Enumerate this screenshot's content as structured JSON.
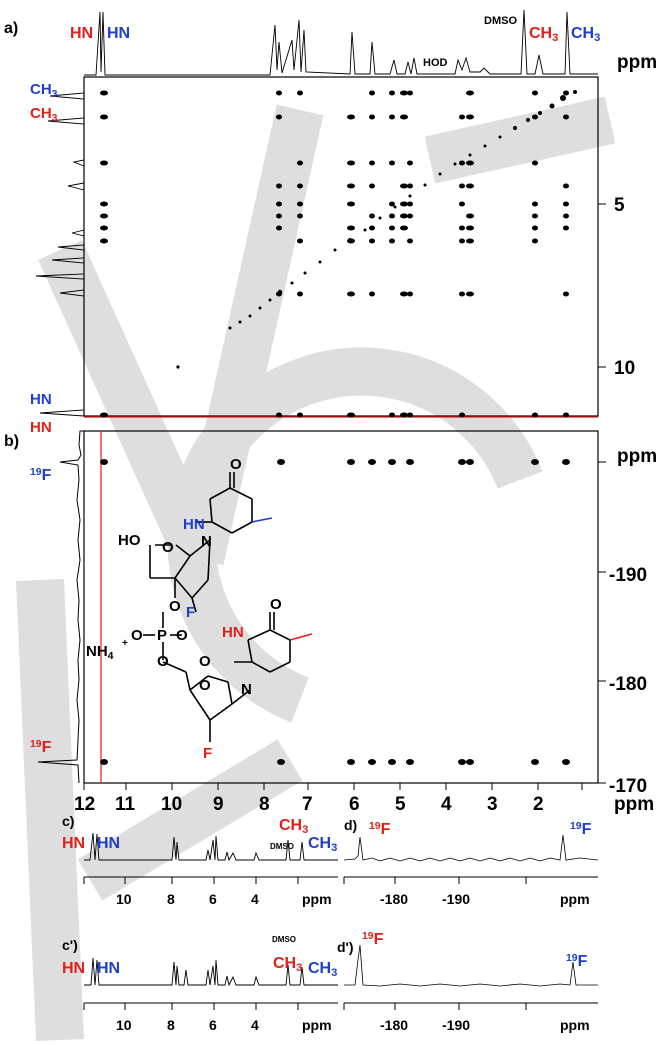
{
  "panels": {
    "a": {
      "label": "a)",
      "top_labels": {
        "hn_red": "HN",
        "hn_blue": "HN",
        "dmso": "DMSO",
        "ch3_red": "CH3",
        "ch3_blue": "CH3",
        "hod": "HOD"
      },
      "left_labels": {
        "ch3_blue": "CH3",
        "ch3_red": "CH3",
        "hn_blue": "HN",
        "hn_red": "HN"
      },
      "axis_unit": "ppm",
      "right_ticks": [
        "5",
        "10"
      ]
    },
    "b": {
      "label": "b)",
      "f19_blue": "19F",
      "f19_red": "19F",
      "axis_unit": "ppm",
      "right_ticks": [
        "-170",
        "-180",
        "-190"
      ]
    },
    "x_axis": {
      "ticks": [
        "12",
        "11",
        "10",
        "9",
        "8",
        "7",
        "6",
        "5",
        "4",
        "3",
        "2"
      ],
      "unit": "ppm"
    },
    "c": {
      "label": "c)",
      "labels": {
        "hn_red": "HN",
        "hn_blue": "HN",
        "ch3_red": "CH3",
        "dmso": "DMSO",
        "ch3_blue": "CH3"
      },
      "ticks": [
        "10",
        "8",
        "6",
        "4"
      ],
      "unit": "ppm"
    },
    "d": {
      "label": "d)",
      "f19_red": "19F",
      "f19_blue": "19F",
      "ticks": [
        "-180",
        "-190"
      ],
      "unit": "ppm"
    },
    "c_prime": {
      "label": "c')",
      "labels": {
        "hn_red": "HN",
        "hn_blue": "HN",
        "dmso": "DMSO",
        "ch3_red": "CH3",
        "ch3_blue": "CH3"
      },
      "ticks": [
        "10",
        "8",
        "6",
        "4"
      ],
      "unit": "ppm"
    },
    "d_prime": {
      "label": "d')",
      "f19_red": "19F",
      "f19_blue": "19F",
      "ticks": [
        "-180",
        "-190"
      ],
      "unit": "ppm"
    }
  },
  "structure": {
    "ho": "HO",
    "o": "O",
    "hn_blue": "HN",
    "n": "N",
    "f_blue": "F",
    "p": "P",
    "nh4": "NH4",
    "plus": "+",
    "hn_red": "HN",
    "f_red": "F"
  },
  "colors": {
    "red": "#e0201b",
    "blue": "#1f3fd1",
    "black": "#000000",
    "watermark": "#dedede"
  }
}
